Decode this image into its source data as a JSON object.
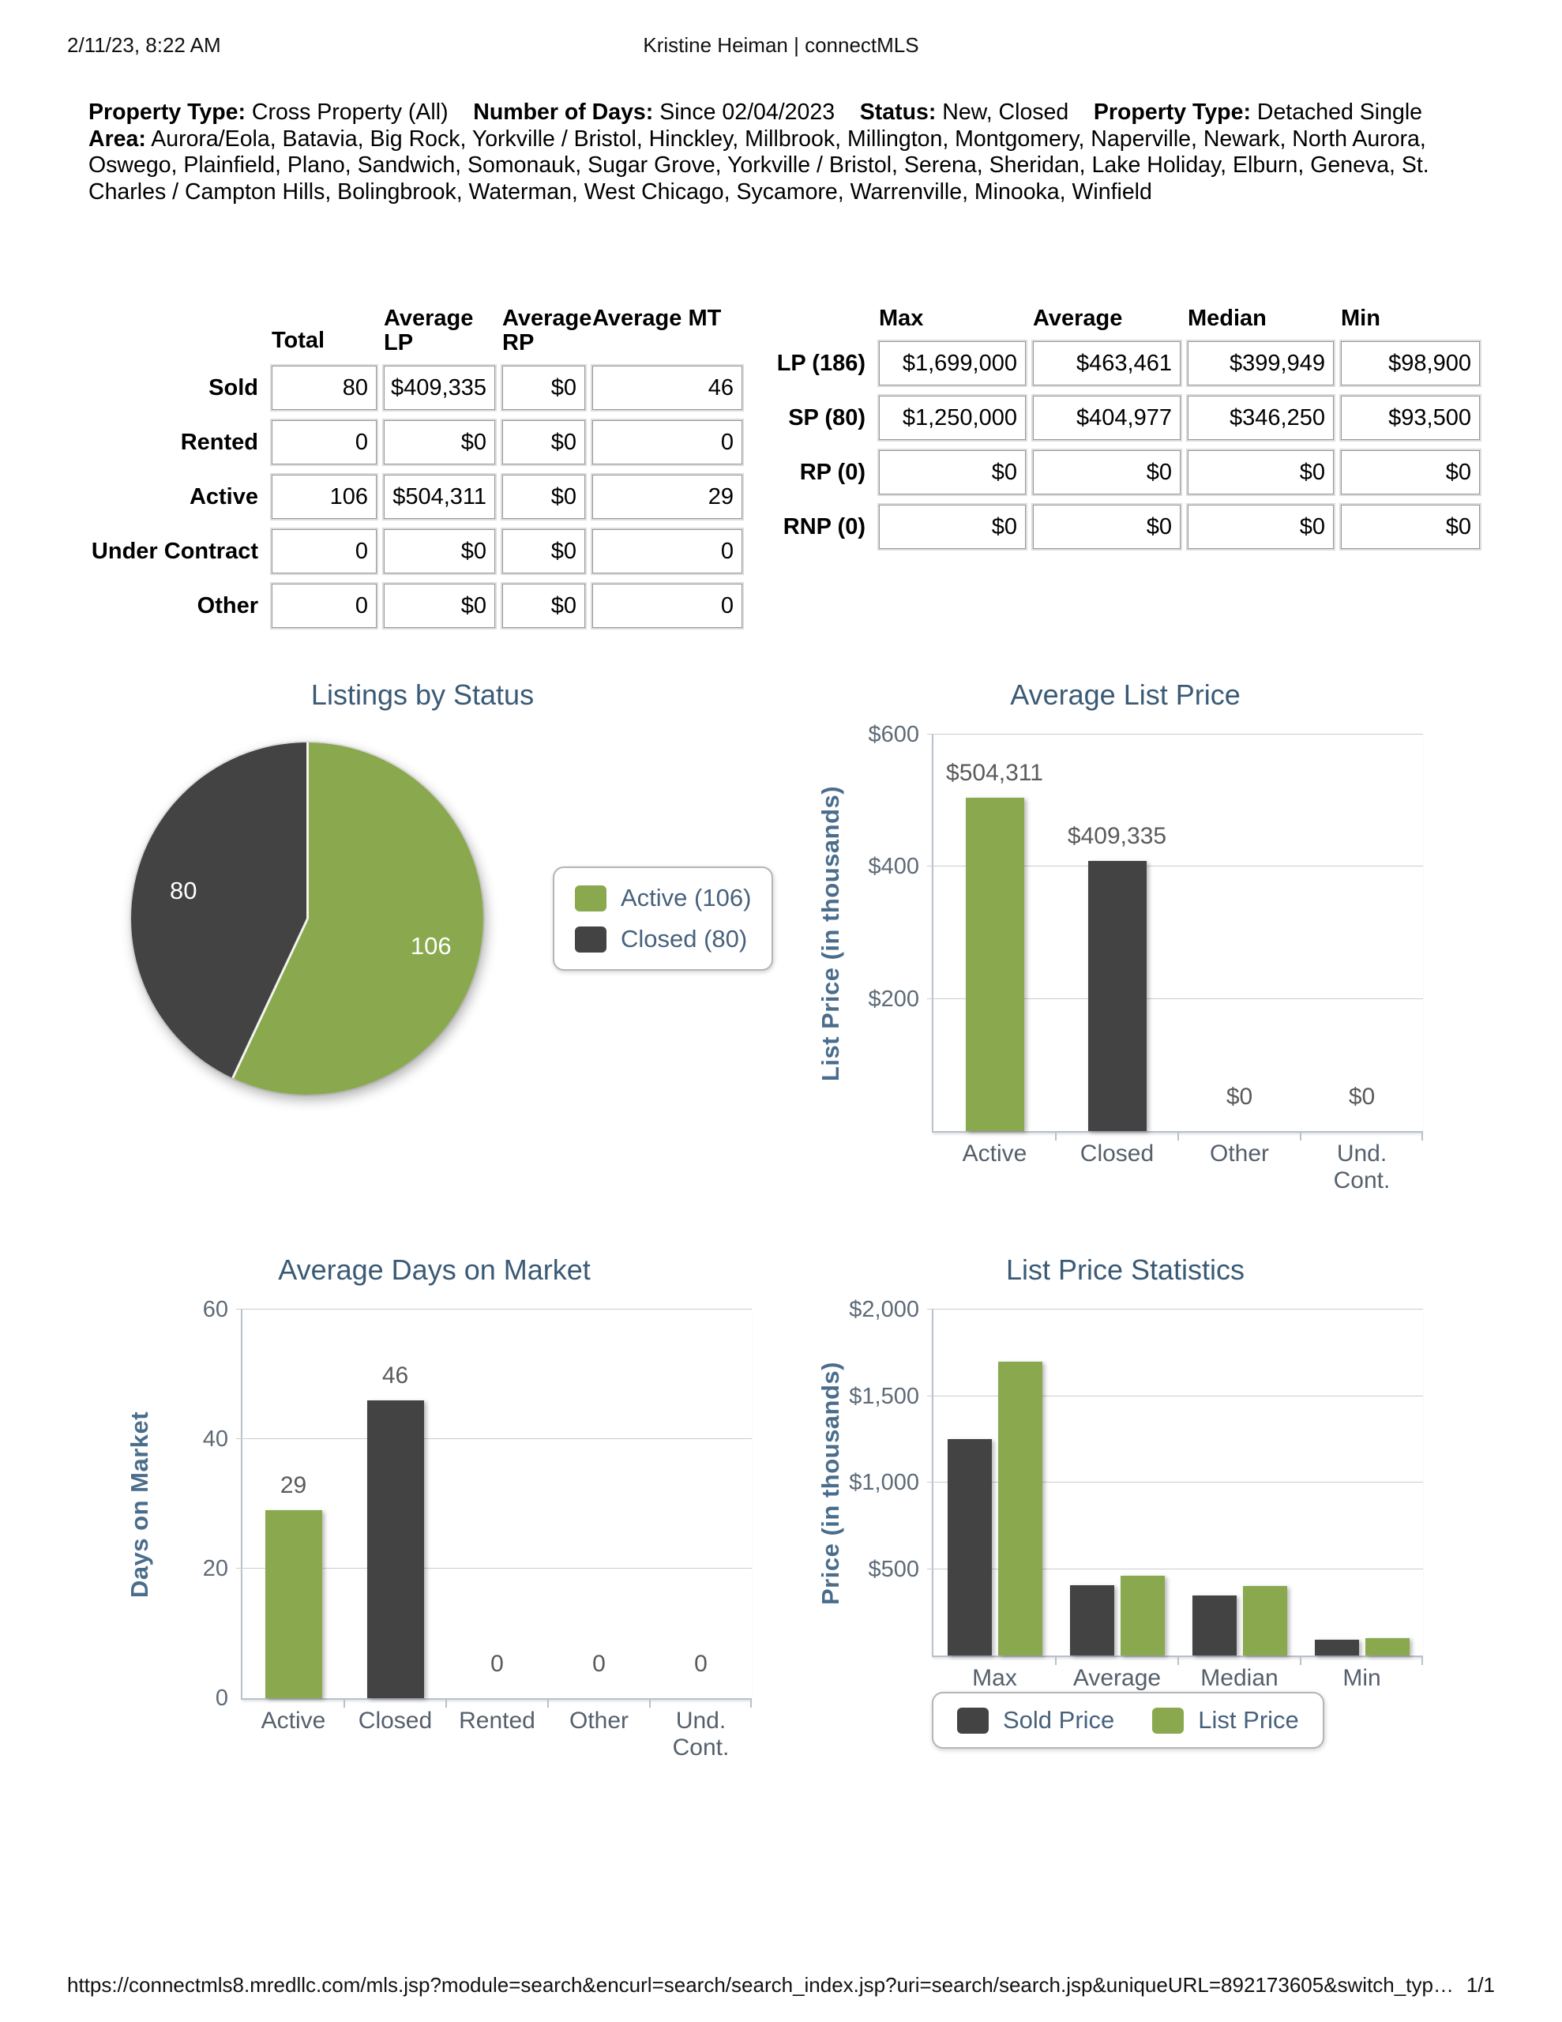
{
  "header": {
    "datetime": "2/11/23, 8:22 AM",
    "title": "Kristine Heiman | connectMLS"
  },
  "criteria": [
    {
      "label": "Property Type:",
      "value": "Cross Property (All)"
    },
    {
      "label": "Number of Days:",
      "value": "Since 02/04/2023"
    },
    {
      "label": "Status:",
      "value": "New, Closed"
    },
    {
      "label": "Property Type:",
      "value": "Detached Single"
    },
    {
      "label": "Area:",
      "value": "Aurora/Eola, Batavia, Big Rock, Yorkville / Bristol, Hinckley, Millbrook, Millington, Montgomery, Naperville, Newark, North Aurora, Oswego, Plainfield, Plano, Sandwich, Somonauk, Sugar Grove, Yorkville / Bristol, Serena, Sheridan, Lake Holiday, Elburn, Geneva, St. Charles / Campton Hills, Bolingbrook, Waterman, West Chicago, Sycamore, Warrenville, Minooka, Winfield"
    }
  ],
  "status_table": {
    "headers": [
      "Total",
      "Average LP",
      "Average RP",
      "Average MT"
    ],
    "rows": [
      {
        "label": "Sold",
        "values": [
          "80",
          "$409,335",
          "$0",
          "46"
        ]
      },
      {
        "label": "Rented",
        "values": [
          "0",
          "$0",
          "$0",
          "0"
        ]
      },
      {
        "label": "Active",
        "values": [
          "106",
          "$504,311",
          "$0",
          "29"
        ]
      },
      {
        "label": "Under Contract",
        "values": [
          "0",
          "$0",
          "$0",
          "0"
        ]
      },
      {
        "label": "Other",
        "values": [
          "0",
          "$0",
          "$0",
          "0"
        ]
      }
    ]
  },
  "price_table": {
    "headers": [
      "Max",
      "Average",
      "Median",
      "Min"
    ],
    "rows": [
      {
        "label": "LP (186)",
        "values": [
          "$1,699,000",
          "$463,461",
          "$399,949",
          "$98,900"
        ]
      },
      {
        "label": "SP (80)",
        "values": [
          "$1,250,000",
          "$404,977",
          "$346,250",
          "$93,500"
        ]
      },
      {
        "label": "RP (0)",
        "values": [
          "$0",
          "$0",
          "$0",
          "$0"
        ]
      },
      {
        "label": "RNP (0)",
        "values": [
          "$0",
          "$0",
          "$0",
          "$0"
        ]
      }
    ]
  },
  "chart_data": [
    {
      "type": "pie",
      "title": "Listings by Status",
      "slices": [
        {
          "label": "Active",
          "value": 106,
          "slice_label": "106",
          "color": "#8aa84e"
        },
        {
          "label": "Closed",
          "value": 80,
          "slice_label": "80",
          "color": "#434343"
        }
      ],
      "legend": [
        {
          "label": "Active (106)",
          "color": "#8aa84e"
        },
        {
          "label": "Closed (80)",
          "color": "#434343"
        }
      ],
      "legend_position": "right"
    },
    {
      "type": "bar",
      "title": "Average List Price",
      "ylabel": "List Price (in thousands)",
      "categories": [
        "Active",
        "Closed",
        "Other",
        "Und. Cont."
      ],
      "values": [
        504.311,
        409.335,
        0,
        0
      ],
      "bar_labels": [
        "$504,311",
        "$409,335",
        "$0",
        "$0"
      ],
      "colors": [
        "#8aa84e",
        "#434343",
        "#8aa84e",
        "#434343"
      ],
      "ylim": [
        0,
        600
      ],
      "yticks": [
        {
          "v": 200,
          "label": "$200"
        },
        {
          "v": 400,
          "label": "$400"
        },
        {
          "v": 600,
          "label": "$600"
        }
      ],
      "grid": true
    },
    {
      "type": "bar",
      "title": "Average Days on Market",
      "ylabel": "Days on Market",
      "categories": [
        "Active",
        "Closed",
        "Rented",
        "Other",
        "Und. Cont."
      ],
      "values": [
        29,
        46,
        0,
        0,
        0
      ],
      "bar_labels": [
        "29",
        "46",
        "0",
        "0",
        "0"
      ],
      "colors": [
        "#8aa84e",
        "#434343",
        "#8aa84e",
        "#434343",
        "#8aa84e"
      ],
      "ylim": [
        0,
        60
      ],
      "yticks": [
        {
          "v": 0,
          "label": "0"
        },
        {
          "v": 20,
          "label": "20"
        },
        {
          "v": 40,
          "label": "40"
        },
        {
          "v": 60,
          "label": "60"
        }
      ],
      "grid": true
    },
    {
      "type": "grouped-bar",
      "title": "List Price Statistics",
      "ylabel": "Price (in thousands)",
      "categories": [
        "Max",
        "Average",
        "Median",
        "Min"
      ],
      "series": [
        {
          "name": "Sold Price",
          "color": "#434343",
          "values": [
            1250,
            404.977,
            346.25,
            93.5
          ]
        },
        {
          "name": "List Price",
          "color": "#8aa84e",
          "values": [
            1699,
            463.461,
            399.949,
            98.9
          ]
        }
      ],
      "ylim": [
        0,
        2000
      ],
      "yticks": [
        {
          "v": 500,
          "label": "$500"
        },
        {
          "v": 1000,
          "label": "$1,000"
        },
        {
          "v": 1500,
          "label": "$1,500"
        },
        {
          "v": 2000,
          "label": "$2,000"
        }
      ],
      "legend_position": "bottom",
      "grid": true
    }
  ],
  "footer": {
    "url": "https://connectmls8.mredllc.com/mls.jsp?module=search&encurl=search/search_index.jsp?uri=search/search.jsp&uniqueURL=892173605&switch_typ…",
    "page": "1/1"
  }
}
